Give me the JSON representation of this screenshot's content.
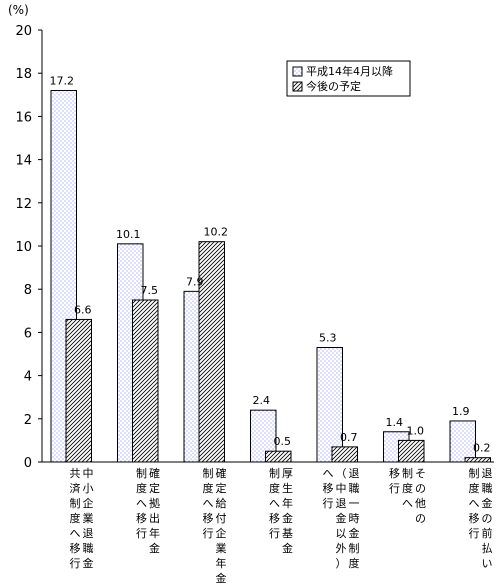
{
  "chart_data": {
    "type": "bar",
    "ylabel": "(%)",
    "ylim": [
      0,
      20
    ],
    "yticks": [
      0,
      2,
      4,
      6,
      8,
      10,
      12,
      14,
      16,
      18,
      20
    ],
    "grid": false,
    "legend_position": "top-right",
    "categories": [
      [
        "中小企業退職金",
        "共済制度へ移行"
      ],
      [
        "確定拠出年金",
        "制度へ移行"
      ],
      [
        "確定給付企業年金",
        "制度へ移行"
      ],
      [
        "厚生年金基金",
        "制度へ移行"
      ],
      [
        "退職一時金制度",
        "（中退金以外）",
        "へ移行"
      ],
      [
        "その他の",
        "制度へ",
        "移行"
      ],
      [
        "退職金の前払い",
        "制度へ移行"
      ]
    ],
    "series": [
      {
        "name": "平成14年4月以降",
        "values": [
          17.2,
          10.1,
          7.9,
          2.4,
          5.3,
          1.4,
          1.9
        ],
        "labels": [
          "17.2",
          "10.1",
          "7.9",
          "2.4",
          "5.3",
          "1.4",
          "1.9"
        ]
      },
      {
        "name": "今後の予定",
        "values": [
          6.6,
          7.5,
          10.2,
          0.5,
          0.7,
          1.0,
          0.2
        ],
        "labels": [
          "6.6",
          "7.5",
          "10.2",
          "0.5",
          "0.7",
          "1.0",
          "0.2"
        ]
      }
    ],
    "colors": {
      "axis": "#000000",
      "bar_outline": "#000000",
      "dot_fill": "#7a7aff",
      "hatch": "#000000"
    }
  }
}
